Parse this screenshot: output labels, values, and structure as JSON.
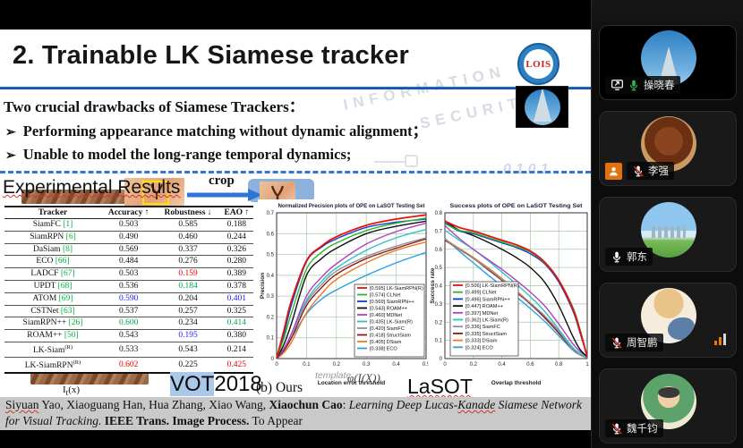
{
  "slide": {
    "title": "2. Trainable LK Siamese tracker",
    "logo_text": "LOIS",
    "intro": "Two crucial drawbacks of Siamese Trackers：",
    "bullet_mark": "➢",
    "bullets": [
      "Performing appearance matching without dynamic alignment；",
      "Unable to model the long-range temporal dynamics;"
    ],
    "section_heading": "Experimental Results",
    "crop_label": "crop",
    "watermarks": {
      "line1": "INFORMATION",
      "line2": "SECURITY",
      "digits": "0101"
    },
    "labels": {
      "it_prefix": "I",
      "it_sub": "t",
      "it_suffix": "(x)",
      "vot_hl": "VOT",
      "vot_rest": "2018",
      "template_faint": "template",
      "ours": "(b) Ours",
      "phi": "φ(I(X))",
      "lasot": "LaSOT"
    }
  },
  "table": {
    "header": [
      "Tracker",
      "Accuracy ↑",
      "Robustness ↓",
      "EAO ↑"
    ],
    "rows": [
      {
        "tracker": "SiamFC",
        "ref": "[1]",
        "sup": null,
        "cells": [
          [
            "0.503",
            "k"
          ],
          [
            "0.585",
            "k"
          ],
          [
            "0.188",
            "k"
          ]
        ]
      },
      {
        "tracker": "SiamRPN",
        "ref": "[6]",
        "sup": null,
        "cells": [
          [
            "0.490",
            "k"
          ],
          [
            "0.460",
            "k"
          ],
          [
            "0.244",
            "k"
          ]
        ]
      },
      {
        "tracker": "DaSiam",
        "ref": "[8]",
        "sup": null,
        "cells": [
          [
            "0.569",
            "k"
          ],
          [
            "0.337",
            "k"
          ],
          [
            "0.326",
            "k"
          ]
        ]
      },
      {
        "tracker": "ECO",
        "ref": "[66]",
        "sup": null,
        "cells": [
          [
            "0.484",
            "k"
          ],
          [
            "0.276",
            "k"
          ],
          [
            "0.280",
            "k"
          ]
        ]
      },
      {
        "tracker": "LADCF",
        "ref": "[67]",
        "sup": null,
        "cells": [
          [
            "0.503",
            "k"
          ],
          [
            "0.159",
            "r"
          ],
          [
            "0.389",
            "k"
          ]
        ]
      },
      {
        "tracker": "UPDT",
        "ref": "[68]",
        "sup": null,
        "cells": [
          [
            "0.536",
            "k"
          ],
          [
            "0.184",
            "g"
          ],
          [
            "0.378",
            "k"
          ]
        ]
      },
      {
        "tracker": "ATOM",
        "ref": "[69]",
        "sup": null,
        "cells": [
          [
            "0.590",
            "b"
          ],
          [
            "0.204",
            "k"
          ],
          [
            "0.401",
            "b"
          ]
        ]
      },
      {
        "tracker": "CSTNet",
        "ref": "[63]",
        "sup": null,
        "cells": [
          [
            "0.537",
            "k"
          ],
          [
            "0.257",
            "k"
          ],
          [
            "0.325",
            "k"
          ]
        ]
      },
      {
        "tracker": "SiamRPN++",
        "ref": "[26]",
        "sup": null,
        "cells": [
          [
            "0.600",
            "g"
          ],
          [
            "0.234",
            "k"
          ],
          [
            "0.414",
            "g"
          ]
        ]
      },
      {
        "tracker": "ROAM++",
        "ref": "[50]",
        "sup": null,
        "cells": [
          [
            "0.543",
            "k"
          ],
          [
            "0.195",
            "b"
          ],
          [
            "0.380",
            "k"
          ]
        ]
      },
      {
        "tracker": "LK-Siam",
        "ref": null,
        "sup": "(R)",
        "cells": [
          [
            "0.533",
            "k"
          ],
          [
            "0.543",
            "k"
          ],
          [
            "0.214",
            "k"
          ]
        ]
      },
      {
        "tracker": "LK-SiamRPN",
        "ref": null,
        "sup": "(R)",
        "cells": [
          [
            "0.602",
            "r"
          ],
          [
            "0.225",
            "k"
          ],
          [
            "0.425",
            "r"
          ]
        ]
      }
    ]
  },
  "citation": {
    "segments": [
      {
        "t": "Siyuan",
        "s": "wavy"
      },
      {
        "t": " Yao, Xiaoguang Han, Hua Zhang, Xiao Wang, ",
        "s": ""
      },
      {
        "t": "Xiaochun Cao",
        "s": "b"
      },
      {
        "t": ": ",
        "s": ""
      },
      {
        "t": "Learning Deep Lucas-",
        "s": "i"
      },
      {
        "t": "Kanade",
        "s": "i wavy"
      },
      {
        "t": " Siamese Network for Visual Tracking.",
        "s": "i"
      },
      {
        "t": "  ",
        "s": ""
      },
      {
        "t": "IEEE Trans. Image Process.",
        "s": "b"
      },
      {
        "t": " To Appear",
        "s": ""
      }
    ]
  },
  "meeting": {
    "participants": [
      {
        "name": "操晓春",
        "avatar": "tower",
        "video": true,
        "mic": "on",
        "mic_color": "#39b54a",
        "presenter": true,
        "person_badge": false,
        "signal": false
      },
      {
        "name": "李强",
        "avatar": "food",
        "video": false,
        "mic": "muted",
        "mic_color": "#ffffff",
        "presenter": false,
        "person_badge": true,
        "signal": false
      },
      {
        "name": "郭东",
        "avatar": "city",
        "video": false,
        "mic": "on",
        "mic_color": "#ffffff",
        "presenter": false,
        "person_badge": false,
        "signal": false
      },
      {
        "name": "周智鹏",
        "avatar": "hamster",
        "video": false,
        "mic": "muted",
        "mic_color": "#ffffff",
        "presenter": false,
        "person_badge": false,
        "signal": true
      },
      {
        "name": "魏千钧",
        "avatar": "anime",
        "video": false,
        "mic": "muted",
        "mic_color": "#ffffff",
        "presenter": false,
        "person_badge": false,
        "signal": false
      }
    ]
  },
  "chart_data": [
    {
      "type": "line",
      "title": "Normalized Precision plots of OPE on LaSOT Testing Set",
      "xlabel": "Location error threshold",
      "ylabel": "Precision",
      "xlim": [
        0,
        0.5
      ],
      "ylim": [
        0,
        0.7
      ],
      "xticks": [
        0,
        0.1,
        0.2,
        0.3,
        0.4,
        0.5
      ],
      "yticks": [
        0.1,
        0.2,
        0.3,
        0.4,
        0.5,
        0.6,
        0.7
      ],
      "grid": true,
      "grid_color": "#a8c8a8",
      "legend_position": "bottom-right",
      "x": [
        0,
        0.025,
        0.05,
        0.1,
        0.15,
        0.2,
        0.3,
        0.4,
        0.5
      ],
      "series": [
        {
          "name": "LK-SiamRPN(R)",
          "score": "0.595",
          "color": "#e81010",
          "y": [
            0,
            0.14,
            0.28,
            0.47,
            0.54,
            0.585,
            0.64,
            0.67,
            0.69
          ]
        },
        {
          "name": "CLNet",
          "score": "0.574",
          "color": "#2db52d",
          "y": [
            0,
            0.1,
            0.22,
            0.43,
            0.51,
            0.555,
            0.615,
            0.65,
            0.675
          ]
        },
        {
          "name": "SiamRPN++",
          "score": "0.569",
          "color": "#1040cc",
          "y": [
            0,
            0.12,
            0.26,
            0.465,
            0.535,
            0.575,
            0.63,
            0.655,
            0.67
          ]
        },
        {
          "name": "ROAM++",
          "score": "0.543",
          "color": "#101010",
          "y": [
            0,
            0.07,
            0.17,
            0.4,
            0.48,
            0.53,
            0.6,
            0.635,
            0.66
          ]
        },
        {
          "name": "MDNet",
          "score": "0.460",
          "color": "#b040c0",
          "y": [
            0,
            0.05,
            0.12,
            0.3,
            0.39,
            0.455,
            0.55,
            0.61,
            0.65
          ]
        },
        {
          "name": "LK-Siam(R)",
          "score": "0.435",
          "color": "#30c0c8",
          "y": [
            0,
            0.05,
            0.12,
            0.28,
            0.37,
            0.435,
            0.52,
            0.58,
            0.62
          ]
        },
        {
          "name": "SiamFC",
          "score": "0.420",
          "color": "#909090",
          "y": [
            0,
            0.05,
            0.12,
            0.27,
            0.355,
            0.42,
            0.49,
            0.54,
            0.58
          ]
        },
        {
          "name": "StructSiam",
          "score": "0.418",
          "color": "#8b1a1a",
          "y": [
            0,
            0.04,
            0.1,
            0.255,
            0.34,
            0.405,
            0.48,
            0.53,
            0.575
          ]
        },
        {
          "name": "DSiam",
          "score": "0.405",
          "color": "#f07820",
          "y": [
            0,
            0.03,
            0.08,
            0.22,
            0.31,
            0.38,
            0.46,
            0.52,
            0.56
          ]
        },
        {
          "name": "ECO",
          "score": "0.338",
          "color": "#28a0e8",
          "y": [
            0,
            0.04,
            0.1,
            0.215,
            0.285,
            0.33,
            0.4,
            0.46,
            0.51
          ]
        }
      ]
    },
    {
      "type": "line",
      "title": "Success plots of OPE on LaSOT Testing Set",
      "xlabel": "Overlap threshold",
      "ylabel": "Success rate",
      "xlim": [
        0,
        1
      ],
      "ylim": [
        0,
        0.8
      ],
      "xticks": [
        0,
        0.2,
        0.4,
        0.6,
        0.8,
        1
      ],
      "yticks": [
        0.1,
        0.2,
        0.3,
        0.4,
        0.5,
        0.6,
        0.7,
        0.8
      ],
      "grid": true,
      "grid_color": "#a8c8a8",
      "legend_position": "bottom-left",
      "x": [
        0,
        0.1,
        0.2,
        0.3,
        0.4,
        0.5,
        0.6,
        0.7,
        0.8,
        0.9,
        0.95,
        1
      ],
      "series": [
        {
          "name": "LK-SiamRPN(R)",
          "score": "0.506",
          "color": "#e81010",
          "y": [
            0.755,
            0.72,
            0.7,
            0.675,
            0.65,
            0.625,
            0.59,
            0.53,
            0.43,
            0.27,
            0.15,
            0.01
          ]
        },
        {
          "name": "CLNet",
          "score": "0.499",
          "color": "#2db52d",
          "y": [
            0.74,
            0.705,
            0.69,
            0.665,
            0.64,
            0.615,
            0.585,
            0.525,
            0.43,
            0.28,
            0.16,
            0.01
          ]
        },
        {
          "name": "SiamRPN++",
          "score": "0.496",
          "color": "#1040cc",
          "y": [
            0.745,
            0.7,
            0.685,
            0.66,
            0.635,
            0.61,
            0.575,
            0.52,
            0.42,
            0.26,
            0.14,
            0.01
          ]
        },
        {
          "name": "ROAM++",
          "score": "0.447",
          "color": "#101010",
          "y": [
            0.755,
            0.705,
            0.675,
            0.64,
            0.6,
            0.555,
            0.5,
            0.42,
            0.29,
            0.12,
            0.05,
            0.01
          ]
        },
        {
          "name": "MDNet",
          "score": "0.397",
          "color": "#b040c0",
          "y": [
            0.73,
            0.66,
            0.6,
            0.545,
            0.49,
            0.43,
            0.365,
            0.29,
            0.19,
            0.08,
            0.04,
            0.01
          ]
        },
        {
          "name": "LK-Siam(R)",
          "score": "0.362",
          "color": "#30c0c8",
          "y": [
            0.705,
            0.65,
            0.6,
            0.54,
            0.475,
            0.41,
            0.34,
            0.26,
            0.16,
            0.06,
            0.03,
            0.005
          ]
        },
        {
          "name": "SiamFC",
          "score": "0.336",
          "color": "#909090",
          "y": [
            0.655,
            0.6,
            0.55,
            0.495,
            0.435,
            0.37,
            0.305,
            0.235,
            0.15,
            0.05,
            0.02,
            0.005
          ]
        },
        {
          "name": "StructSiam",
          "score": "0.335",
          "color": "#8b1a1a",
          "y": [
            0.65,
            0.6,
            0.55,
            0.49,
            0.43,
            0.365,
            0.3,
            0.225,
            0.14,
            0.05,
            0.02,
            0.005
          ]
        },
        {
          "name": "DSiam",
          "score": "0.333",
          "color": "#f07820",
          "y": [
            0.655,
            0.605,
            0.555,
            0.5,
            0.44,
            0.375,
            0.305,
            0.23,
            0.14,
            0.05,
            0.02,
            0.005
          ]
        },
        {
          "name": "ECO",
          "score": "0.324",
          "color": "#28a0e8",
          "y": [
            0.66,
            0.59,
            0.525,
            0.46,
            0.4,
            0.34,
            0.275,
            0.205,
            0.125,
            0.045,
            0.02,
            0.005
          ]
        }
      ]
    }
  ]
}
